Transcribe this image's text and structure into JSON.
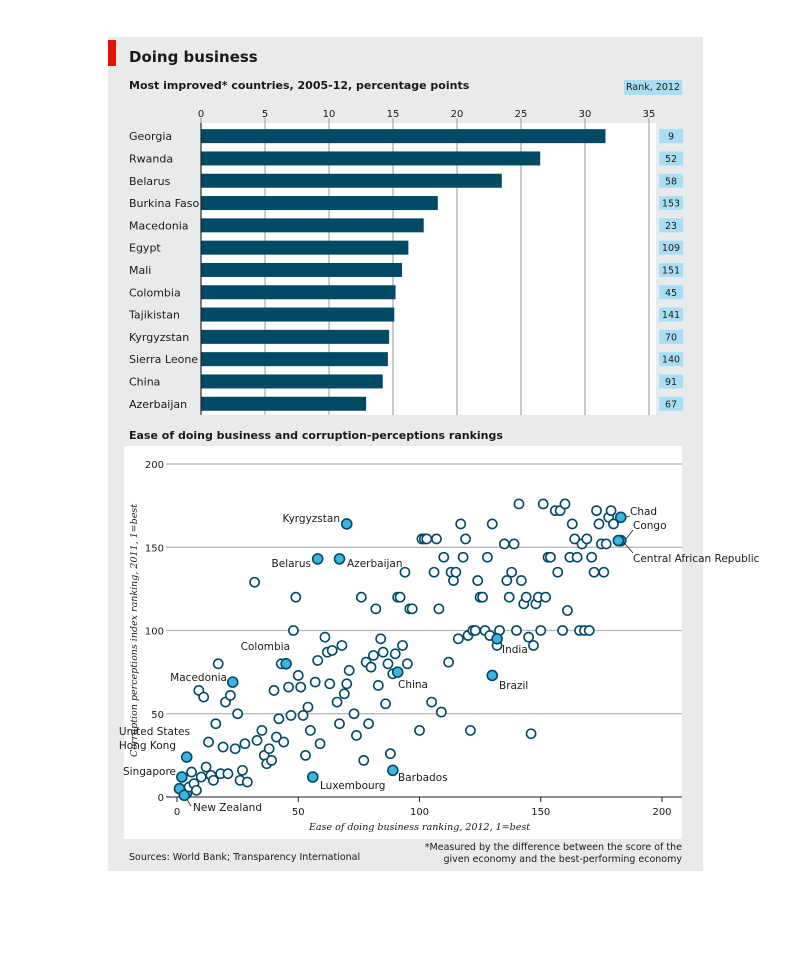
{
  "header": {
    "title": "Doing business",
    "accent_color": "#e3120b"
  },
  "chart_data": [
    {
      "type": "bar",
      "orientation": "horizontal",
      "title": "Most improved* countries, 2005-12, percentage points",
      "categories": [
        "Georgia",
        "Rwanda",
        "Belarus",
        "Burkina Faso",
        "Macedonia",
        "Egypt",
        "Mali",
        "Colombia",
        "Tajikistan",
        "Kyrgyzstan",
        "Sierra Leone",
        "China",
        "Azerbaijan"
      ],
      "values": [
        31.6,
        26.5,
        23.5,
        18.5,
        17.4,
        16.2,
        15.7,
        15.2,
        15.1,
        14.7,
        14.6,
        14.2,
        12.9
      ],
      "xlim": [
        0,
        35
      ],
      "xticks": [
        "0",
        "5",
        "10",
        "15",
        "20",
        "25",
        "30",
        "35"
      ],
      "grid": true,
      "bar_color": "#004a66",
      "rank_header": "Rank, 2012",
      "ranks": [
        "9",
        "52",
        "58",
        "153",
        "23",
        "109",
        "151",
        "45",
        "141",
        "70",
        "140",
        "91",
        "67"
      ],
      "rank_color": "#a9dff5"
    },
    {
      "type": "scatter",
      "title": "Ease of doing business and corruption-perceptions rankings",
      "xlabel": "Ease of doing business ranking, 2012, 1=best",
      "ylabel": "Corruption perceptions index ranking, 2011, 1=best",
      "xlim": [
        0,
        200
      ],
      "ylim": [
        0,
        200
      ],
      "xticks": [
        "0",
        "50",
        "100",
        "150",
        "200"
      ],
      "yticks": [
        "0",
        "50",
        "100",
        "150",
        "200"
      ],
      "grid": true,
      "highlight_color": "#3ab5e0",
      "highlighted": [
        {
          "label": "Kyrgyzstan",
          "x": 70,
          "y": 164
        },
        {
          "label": "Belarus",
          "x": 58,
          "y": 143
        },
        {
          "label": "Azerbaijan",
          "x": 67,
          "y": 143
        },
        {
          "label": "Chad",
          "x": 183,
          "y": 168
        },
        {
          "label": "Congo",
          "x": 183,
          "y": 154
        },
        {
          "label": "Central African Republic",
          "x": 182,
          "y": 154
        },
        {
          "label": "Colombia",
          "x": 45,
          "y": 80
        },
        {
          "label": "India",
          "x": 132,
          "y": 95
        },
        {
          "label": "China",
          "x": 91,
          "y": 75
        },
        {
          "label": "Brazil",
          "x": 130,
          "y": 73
        },
        {
          "label": "Macedonia",
          "x": 23,
          "y": 69
        },
        {
          "label": "United States",
          "x": 4,
          "y": 24
        },
        {
          "label": "Hong Kong",
          "x": 2,
          "y": 12
        },
        {
          "label": "Singapore",
          "x": 1,
          "y": 5
        },
        {
          "label": "New Zealand",
          "x": 3,
          "y": 1
        },
        {
          "label": "Luxembourg",
          "x": 56,
          "y": 12
        },
        {
          "label": "Barbados",
          "x": 89,
          "y": 16
        }
      ],
      "points": [
        [
          3,
          2
        ],
        [
          4,
          2
        ],
        [
          5,
          6
        ],
        [
          6,
          15
        ],
        [
          7,
          8
        ],
        [
          8,
          4
        ],
        [
          9,
          64
        ],
        [
          10,
          12
        ],
        [
          11,
          60
        ],
        [
          12,
          18
        ],
        [
          13,
          33
        ],
        [
          14,
          13
        ],
        [
          15,
          10
        ],
        [
          16,
          44
        ],
        [
          17,
          80
        ],
        [
          18,
          14
        ],
        [
          19,
          30
        ],
        [
          20,
          57
        ],
        [
          21,
          14
        ],
        [
          22,
          61
        ],
        [
          24,
          29
        ],
        [
          25,
          50
        ],
        [
          26,
          10
        ],
        [
          27,
          16
        ],
        [
          28,
          32
        ],
        [
          29,
          9
        ],
        [
          32,
          129
        ],
        [
          33,
          34
        ],
        [
          35,
          40
        ],
        [
          36,
          25
        ],
        [
          37,
          20
        ],
        [
          38,
          29
        ],
        [
          39,
          22
        ],
        [
          40,
          64
        ],
        [
          41,
          36
        ],
        [
          42,
          47
        ],
        [
          43,
          80
        ],
        [
          44,
          33
        ],
        [
          46,
          66
        ],
        [
          47,
          49
        ],
        [
          48,
          100
        ],
        [
          49,
          120
        ],
        [
          50,
          73
        ],
        [
          51,
          66
        ],
        [
          52,
          49
        ],
        [
          53,
          25
        ],
        [
          54,
          54
        ],
        [
          55,
          40
        ],
        [
          57,
          69
        ],
        [
          58,
          82
        ],
        [
          59,
          32
        ],
        [
          61,
          96
        ],
        [
          62,
          87
        ],
        [
          63,
          68
        ],
        [
          64,
          88
        ],
        [
          66,
          57
        ],
        [
          67,
          44
        ],
        [
          68,
          91
        ],
        [
          69,
          62
        ],
        [
          70,
          68
        ],
        [
          71,
          76
        ],
        [
          73,
          50
        ],
        [
          74,
          37
        ],
        [
          76,
          120
        ],
        [
          77,
          22
        ],
        [
          78,
          81
        ],
        [
          79,
          44
        ],
        [
          80,
          78
        ],
        [
          81,
          85
        ],
        [
          82,
          113
        ],
        [
          83,
          67
        ],
        [
          84,
          95
        ],
        [
          85,
          87
        ],
        [
          86,
          56
        ],
        [
          87,
          80
        ],
        [
          88,
          26
        ],
        [
          89,
          74
        ],
        [
          90,
          86
        ],
        [
          91,
          120
        ],
        [
          92,
          120
        ],
        [
          93,
          91
        ],
        [
          94,
          135
        ],
        [
          95,
          80
        ],
        [
          96,
          113
        ],
        [
          97,
          113
        ],
        [
          100,
          40
        ],
        [
          101,
          155
        ],
        [
          102,
          155
        ],
        [
          103,
          155
        ],
        [
          105,
          57
        ],
        [
          106,
          135
        ],
        [
          107,
          155
        ],
        [
          108,
          113
        ],
        [
          109,
          51
        ],
        [
          110,
          144
        ],
        [
          112,
          81
        ],
        [
          113,
          135
        ],
        [
          114,
          130
        ],
        [
          115,
          135
        ],
        [
          116,
          95
        ],
        [
          117,
          164
        ],
        [
          118,
          144
        ],
        [
          119,
          155
        ],
        [
          120,
          97
        ],
        [
          121,
          40
        ],
        [
          122,
          100
        ],
        [
          123,
          100
        ],
        [
          124,
          130
        ],
        [
          125,
          120
        ],
        [
          126,
          120
        ],
        [
          127,
          100
        ],
        [
          128,
          144
        ],
        [
          129,
          97
        ],
        [
          130,
          164
        ],
        [
          132,
          91
        ],
        [
          133,
          100
        ],
        [
          135,
          152
        ],
        [
          136,
          130
        ],
        [
          137,
          120
        ],
        [
          138,
          135
        ],
        [
          139,
          152
        ],
        [
          140,
          100
        ],
        [
          141,
          176
        ],
        [
          142,
          130
        ],
        [
          143,
          116
        ],
        [
          144,
          120
        ],
        [
          145,
          96
        ],
        [
          146,
          38
        ],
        [
          147,
          91
        ],
        [
          148,
          116
        ],
        [
          149,
          120
        ],
        [
          150,
          100
        ],
        [
          151,
          176
        ],
        [
          152,
          120
        ],
        [
          153,
          144
        ],
        [
          154,
          144
        ],
        [
          156,
          172
        ],
        [
          157,
          135
        ],
        [
          158,
          172
        ],
        [
          159,
          100
        ],
        [
          160,
          176
        ],
        [
          161,
          112
        ],
        [
          162,
          144
        ],
        [
          163,
          164
        ],
        [
          164,
          155
        ],
        [
          165,
          144
        ],
        [
          166,
          100
        ],
        [
          167,
          152
        ],
        [
          168,
          100
        ],
        [
          169,
          155
        ],
        [
          170,
          100
        ],
        [
          171,
          144
        ],
        [
          172,
          135
        ],
        [
          173,
          172
        ],
        [
          174,
          164
        ],
        [
          175,
          152
        ],
        [
          176,
          135
        ],
        [
          177,
          152
        ],
        [
          178,
          168
        ],
        [
          179,
          172
        ],
        [
          180,
          164
        ]
      ]
    }
  ],
  "footer": {
    "sources": "Sources: World Bank; Transparency International",
    "footnote_line1": "*Measured by the difference between the score of the",
    "footnote_line2": "given economy and the best-performing economy"
  }
}
